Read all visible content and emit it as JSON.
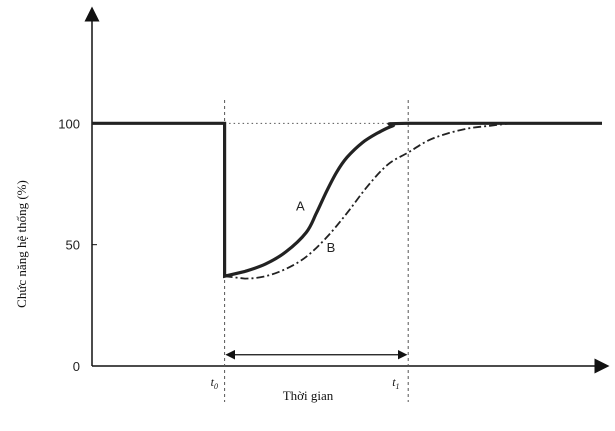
{
  "chart_data": {
    "type": "line",
    "title": "",
    "xlabel": "Thời gian",
    "ylabel": "Chức năng hệ thống (%)",
    "ylim": [
      0,
      150
    ],
    "xlim": [
      0,
      100
    ],
    "y_ticks": [
      {
        "value": 0,
        "label": "0"
      },
      {
        "value": 50,
        "label": "50"
      },
      {
        "value": 100,
        "label": "100"
      }
    ],
    "x_markers": [
      {
        "x": 26,
        "label": "t",
        "sub": "0"
      },
      {
        "x": 62,
        "label": "t",
        "sub": "1"
      }
    ],
    "reference_line": {
      "y": 100,
      "style": "dotted"
    },
    "interval_arrow": {
      "from": 26,
      "to": 62,
      "y": 3
    },
    "series": [
      {
        "name": "A",
        "style": "solid",
        "points": [
          [
            0,
            100
          ],
          [
            26,
            100
          ],
          [
            26,
            37
          ],
          [
            30,
            39
          ],
          [
            34,
            42
          ],
          [
            38,
            47
          ],
          [
            42,
            55
          ],
          [
            44,
            63
          ],
          [
            46,
            72
          ],
          [
            48,
            80
          ],
          [
            50,
            86
          ],
          [
            53,
            92
          ],
          [
            56,
            96
          ],
          [
            59,
            99
          ],
          [
            62,
            100
          ],
          [
            100,
            100
          ]
        ]
      },
      {
        "name": "B",
        "style": "dash-dot",
        "points": [
          [
            26,
            37
          ],
          [
            30,
            36
          ],
          [
            34,
            37
          ],
          [
            38,
            40
          ],
          [
            42,
            45
          ],
          [
            46,
            53
          ],
          [
            50,
            63
          ],
          [
            54,
            74
          ],
          [
            58,
            83
          ],
          [
            62,
            88
          ],
          [
            66,
            93
          ],
          [
            70,
            96
          ],
          [
            74,
            98
          ],
          [
            78,
            99
          ],
          [
            82,
            100
          ]
        ]
      }
    ],
    "curve_labels": [
      {
        "name": "A",
        "x": 40,
        "y": 64
      },
      {
        "name": "B",
        "x": 46,
        "y": 47
      }
    ],
    "grid": false,
    "legend": "none"
  }
}
